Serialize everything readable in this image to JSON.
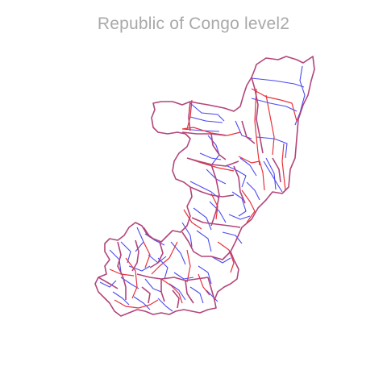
{
  "map": {
    "title": "Republic of Congo level2",
    "colors": {
      "level2_boundaries": "#4a4af0",
      "level1_boundaries": "#e8323a",
      "overlap": "#b2457a",
      "title": "#a9a9a9"
    }
  }
}
